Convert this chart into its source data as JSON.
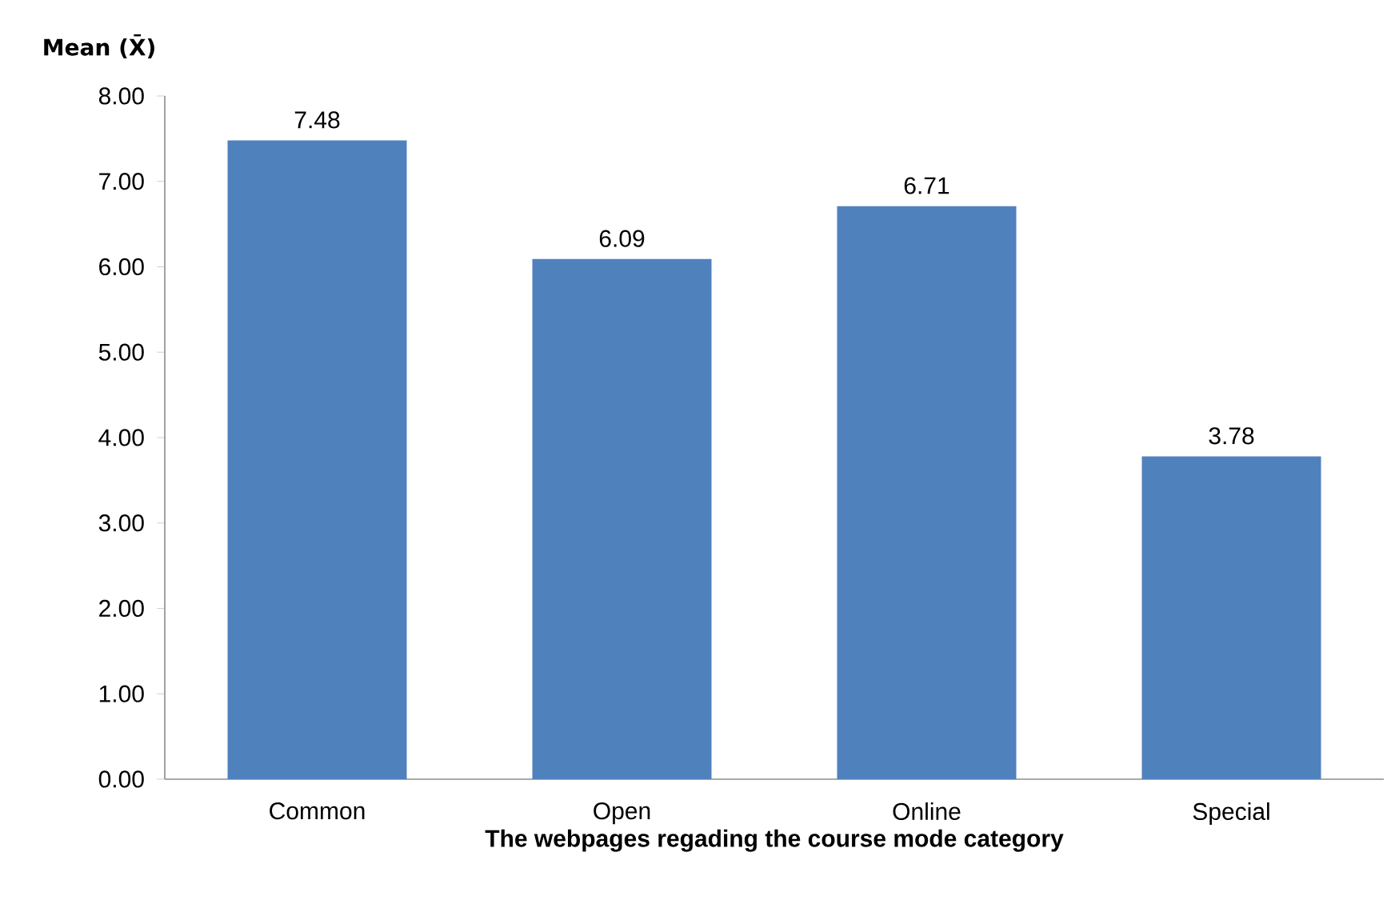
{
  "chart_data": {
    "type": "bar",
    "xlabel": "The webpages regading the course mode category",
    "ylabel": "Mean (X̄)",
    "categories": [
      "Common",
      "Open",
      "Online",
      "Special"
    ],
    "values": [
      7.48,
      6.09,
      6.71,
      3.78
    ],
    "color": "#4f81bd",
    "ylim": [
      0,
      8
    ],
    "yticks": [
      {
        "value": 0,
        "label": "0.00"
      },
      {
        "value": 1,
        "label": "1.00"
      },
      {
        "value": 2,
        "label": "2.00"
      },
      {
        "value": 3,
        "label": "3.00"
      },
      {
        "value": 4,
        "label": "4.00"
      },
      {
        "value": 5,
        "label": "5.00"
      },
      {
        "value": 6,
        "label": "6.00"
      },
      {
        "value": 7,
        "label": "7.00"
      },
      {
        "value": 8,
        "label": "8.00"
      }
    ],
    "data_labels": true,
    "grid": false
  }
}
